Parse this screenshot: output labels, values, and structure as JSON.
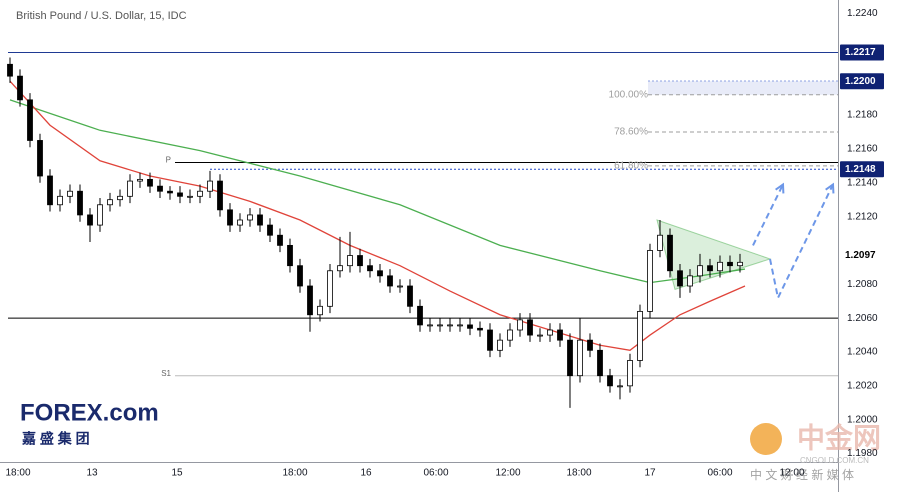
{
  "chart_data": {
    "type": "candlestick",
    "title": "British Pound / U.S. Dollar, 15, IDC",
    "xlim": [
      -0.2,
      82.8
    ],
    "ylim": [
      1.1975,
      1.2248
    ],
    "xticks": [
      {
        "value": 0.8,
        "label": "18:00"
      },
      {
        "value": 8.2,
        "label": "13"
      },
      {
        "value": 16.7,
        "label": "15"
      },
      {
        "value": 28.5,
        "label": "18:00"
      },
      {
        "value": 35.6,
        "label": "16"
      },
      {
        "value": 42.6,
        "label": "06:00"
      },
      {
        "value": 49.8,
        "label": "12:00"
      },
      {
        "value": 56.9,
        "label": "18:00"
      },
      {
        "value": 64,
        "label": "17"
      },
      {
        "value": 71,
        "label": "06:00"
      },
      {
        "value": 78.2,
        "label": "12:00"
      }
    ],
    "yticks": [
      {
        "value": 1.224,
        "label": "1.2240"
      },
      {
        "value": 1.218,
        "label": "1.2180"
      },
      {
        "value": 1.216,
        "label": "1.2160"
      },
      {
        "value": 1.214,
        "label": "1.2140"
      },
      {
        "value": 1.212,
        "label": "1.2120"
      },
      {
        "value": 1.208,
        "label": "1.2080"
      },
      {
        "value": 1.206,
        "label": "1.2060"
      },
      {
        "value": 1.204,
        "label": "1.2040"
      },
      {
        "value": 1.202,
        "label": "1.2020"
      },
      {
        "value": 1.2,
        "label": "1.2000"
      },
      {
        "value": 1.198,
        "label": "1.1980"
      }
    ],
    "up_color": "#ffffff",
    "down_color": "#000000",
    "ohlc": [
      [
        1.221,
        1.2214,
        1.2199,
        1.2203
      ],
      [
        1.2203,
        1.2207,
        1.2185,
        1.2189
      ],
      [
        1.2189,
        1.2193,
        1.2161,
        1.2165
      ],
      [
        1.2165,
        1.2169,
        1.214,
        1.2144
      ],
      [
        1.2144,
        1.2148,
        1.2123,
        1.2127
      ],
      [
        1.2127,
        1.2136,
        1.2123,
        1.2132
      ],
      [
        1.2132,
        1.2139,
        1.2128,
        1.2135
      ],
      [
        1.2135,
        1.2139,
        1.2117,
        1.2121
      ],
      [
        1.2121,
        1.2125,
        1.2105,
        1.2115
      ],
      [
        1.2115,
        1.2131,
        1.2111,
        1.2127
      ],
      [
        1.2127,
        1.2134,
        1.2123,
        1.213
      ],
      [
        1.213,
        1.2136,
        1.2126,
        1.2132
      ],
      [
        1.2132,
        1.2145,
        1.2128,
        1.2141
      ],
      [
        1.2141,
        1.2146,
        1.2137,
        1.2142
      ],
      [
        1.2142,
        1.2146,
        1.2134,
        1.2138
      ],
      [
        1.2138,
        1.2142,
        1.2131,
        1.2135
      ],
      [
        1.2135,
        1.2138,
        1.213,
        1.2134
      ],
      [
        1.2134,
        1.2138,
        1.2128,
        1.2132
      ],
      [
        1.2132,
        1.2136,
        1.2128,
        1.2132
      ],
      [
        1.2132,
        1.2139,
        1.2128,
        1.2135
      ],
      [
        1.2135,
        1.2147,
        1.2131,
        1.2141
      ],
      [
        1.2141,
        1.2145,
        1.212,
        1.2124
      ],
      [
        1.2124,
        1.2128,
        1.2111,
        1.2115
      ],
      [
        1.2115,
        1.2122,
        1.2111,
        1.2118
      ],
      [
        1.2118,
        1.2125,
        1.2114,
        1.2121
      ],
      [
        1.2121,
        1.2125,
        1.2111,
        1.2115
      ],
      [
        1.2115,
        1.2119,
        1.2105,
        1.2109
      ],
      [
        1.2109,
        1.2113,
        1.2099,
        1.2103
      ],
      [
        1.2103,
        1.2107,
        1.2087,
        1.2091
      ],
      [
        1.2091,
        1.2095,
        1.2075,
        1.2079
      ],
      [
        1.2079,
        1.2083,
        1.2052,
        1.2062
      ],
      [
        1.2062,
        1.2071,
        1.2058,
        1.2067
      ],
      [
        1.2067,
        1.2092,
        1.2063,
        1.2088
      ],
      [
        1.2088,
        1.2108,
        1.2084,
        1.2091
      ],
      [
        1.2091,
        1.2111,
        1.2087,
        1.2097
      ],
      [
        1.2097,
        1.2101,
        1.2087,
        1.2091
      ],
      [
        1.2091,
        1.2095,
        1.2084,
        1.2088
      ],
      [
        1.2088,
        1.2092,
        1.2081,
        1.2085
      ],
      [
        1.2085,
        1.2089,
        1.2075,
        1.2079
      ],
      [
        1.2079,
        1.2083,
        1.2075,
        1.2079
      ],
      [
        1.2079,
        1.2083,
        1.2063,
        1.2067
      ],
      [
        1.2067,
        1.2071,
        1.2052,
        1.2056
      ],
      [
        1.2056,
        1.206,
        1.2052,
        1.2056
      ],
      [
        1.2056,
        1.206,
        1.2052,
        1.2056
      ],
      [
        1.2056,
        1.206,
        1.2052,
        1.2056
      ],
      [
        1.2056,
        1.206,
        1.2052,
        1.2056
      ],
      [
        1.2056,
        1.206,
        1.205,
        1.2054
      ],
      [
        1.2054,
        1.2058,
        1.2049,
        1.2053
      ],
      [
        1.2053,
        1.2057,
        1.2037,
        1.2041
      ],
      [
        1.2041,
        1.2051,
        1.2037,
        1.2047
      ],
      [
        1.2047,
        1.2057,
        1.2043,
        1.2053
      ],
      [
        1.2053,
        1.2063,
        1.2049,
        1.2059
      ],
      [
        1.2059,
        1.2063,
        1.2046,
        1.205
      ],
      [
        1.205,
        1.2054,
        1.2046,
        1.205
      ],
      [
        1.205,
        1.2057,
        1.2046,
        1.2053
      ],
      [
        1.2053,
        1.2057,
        1.2043,
        1.2047
      ],
      [
        1.2047,
        1.2051,
        1.2007,
        1.2026
      ],
      [
        1.2026,
        1.206,
        1.2022,
        1.2047
      ],
      [
        1.2047,
        1.2051,
        1.2037,
        1.2041
      ],
      [
        1.2041,
        1.2045,
        1.2022,
        1.2026
      ],
      [
        1.2026,
        1.203,
        1.2016,
        1.202
      ],
      [
        1.202,
        1.2024,
        1.2012,
        1.202
      ],
      [
        1.202,
        1.2039,
        1.2016,
        1.2035
      ],
      [
        1.2035,
        1.2068,
        1.2031,
        1.2064
      ],
      [
        1.2064,
        1.2104,
        1.206,
        1.21
      ],
      [
        1.21,
        1.2118,
        1.2096,
        1.2109
      ],
      [
        1.2109,
        1.2113,
        1.2084,
        1.2088
      ],
      [
        1.2088,
        1.2092,
        1.2072,
        1.2079
      ],
      [
        1.2079,
        1.2089,
        1.2075,
        1.2085
      ],
      [
        1.2085,
        1.2098,
        1.2081,
        1.2091
      ],
      [
        1.2091,
        1.2095,
        1.2084,
        1.2088
      ],
      [
        1.2088,
        1.2097,
        1.2084,
        1.2093
      ],
      [
        1.2093,
        1.2097,
        1.2087,
        1.2091
      ],
      [
        1.2091,
        1.2098,
        1.2087,
        1.2093
      ]
    ],
    "series": [
      {
        "color": "#4caf50",
        "x": [
          0,
          9,
          19,
          29,
          39,
          49,
          59,
          64,
          69,
          73.5
        ],
        "values": [
          1.2189,
          1.2171,
          1.2159,
          1.2144,
          1.2127,
          1.2103,
          1.2088,
          1.2081,
          1.2085,
          1.2089
        ]
      },
      {
        "color": "#e0443a",
        "x": [
          0,
          4,
          9,
          14,
          19,
          24,
          29,
          34,
          39,
          44,
          49,
          54,
          59,
          62,
          64,
          67,
          70,
          73.5
        ],
        "values": [
          1.22,
          1.2174,
          1.2153,
          1.2144,
          1.2138,
          1.2129,
          1.2118,
          1.2103,
          1.2091,
          1.2076,
          1.2062,
          1.2053,
          1.2044,
          1.2041,
          1.205,
          1.2062,
          1.207,
          1.2079
        ]
      }
    ],
    "levels": [
      {
        "value": 1.2217,
        "from": -0.2,
        "color": "#1f3a93",
        "style": "solid"
      },
      {
        "value": 1.206,
        "from": -0.2,
        "color": "#000000",
        "style": "solid"
      },
      {
        "value": 1.2152,
        "from": 16.5,
        "color": "#000000",
        "style": "solid",
        "label": "P"
      },
      {
        "value": 1.2026,
        "from": 16.5,
        "color": "#bbbbbb",
        "style": "solid",
        "label": "S1"
      },
      {
        "value": 1.2148,
        "from": 20,
        "color": "#2448c8",
        "style": "dotted"
      },
      {
        "value": 1.22,
        "from": 63.8,
        "color": "#2448c8",
        "style": "dotted"
      }
    ],
    "fib_levels": [
      {
        "level": {
          "value": 100,
          "label": "100.00%"
        },
        "price": 1.2192
      },
      {
        "level": {
          "value": 78.6,
          "label": "78.60%"
        },
        "price": 1.217
      },
      {
        "level": {
          "value": 61.8,
          "label": "61.80%"
        },
        "price": 1.215
      }
    ],
    "fib_from": 63.8,
    "fib_color": "#9e9e9e",
    "pattern": {
      "color": "#4caf50",
      "x": [
        64.7,
        76,
        66.5
      ],
      "y": [
        1.2118,
        1.2095,
        1.2077
      ]
    },
    "projections": [
      {
        "color": "#6d97e8",
        "x": [
          74.3,
          77.3
        ],
        "y": [
          1.2103,
          1.2139
        ]
      },
      {
        "color": "#6d97e8",
        "x": [
          76,
          76.8,
          82.3
        ],
        "y": [
          1.2095,
          1.2072,
          1.2139
        ]
      }
    ],
    "price_markers": [
      {
        "value": 1.2217,
        "color": "#0f2273",
        "text_color": "#ffffff"
      },
      {
        "value": {
          "value": 1.22,
          "label": "1.2200"
        },
        "color": "#0f2273",
        "text_color": "#ffffff"
      },
      {
        "value": 1.2148,
        "color": "#0f2273",
        "text_color": "#ffffff"
      },
      {
        "value": 1.2097,
        "color": "#ffffff",
        "text_color": "#000000"
      }
    ],
    "logo": {
      "text": "FOREX.com",
      "subtitle": "嘉 盛 集 团"
    },
    "watermark": {
      "title": "中金网",
      "site": "CNGOLD.COM.CN",
      "slogan": "中 文 财 经 新 媒 体"
    }
  }
}
